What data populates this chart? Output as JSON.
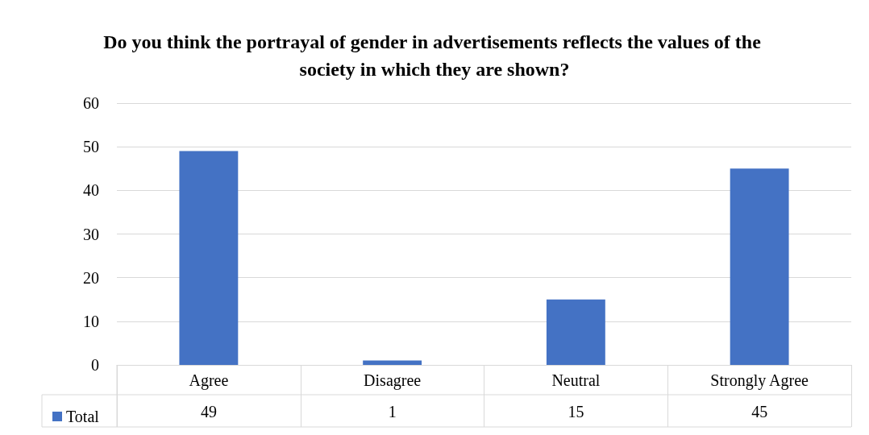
{
  "chart_data": {
    "type": "bar",
    "title": "Do you think the portrayal of gender in advertisements reflects the values of the society in which they are shown?",
    "categories": [
      "Agree",
      "Disagree",
      "Neutral",
      "Strongly Agree"
    ],
    "series": [
      {
        "name": "Total",
        "color": "#4472c4",
        "values": [
          49,
          1,
          15,
          45
        ]
      }
    ],
    "ylim": [
      0,
      60
    ],
    "yticks": [
      0,
      10,
      20,
      30,
      40,
      50,
      60
    ],
    "grid": "y",
    "legend": "bottom left",
    "data_labels": true
  }
}
